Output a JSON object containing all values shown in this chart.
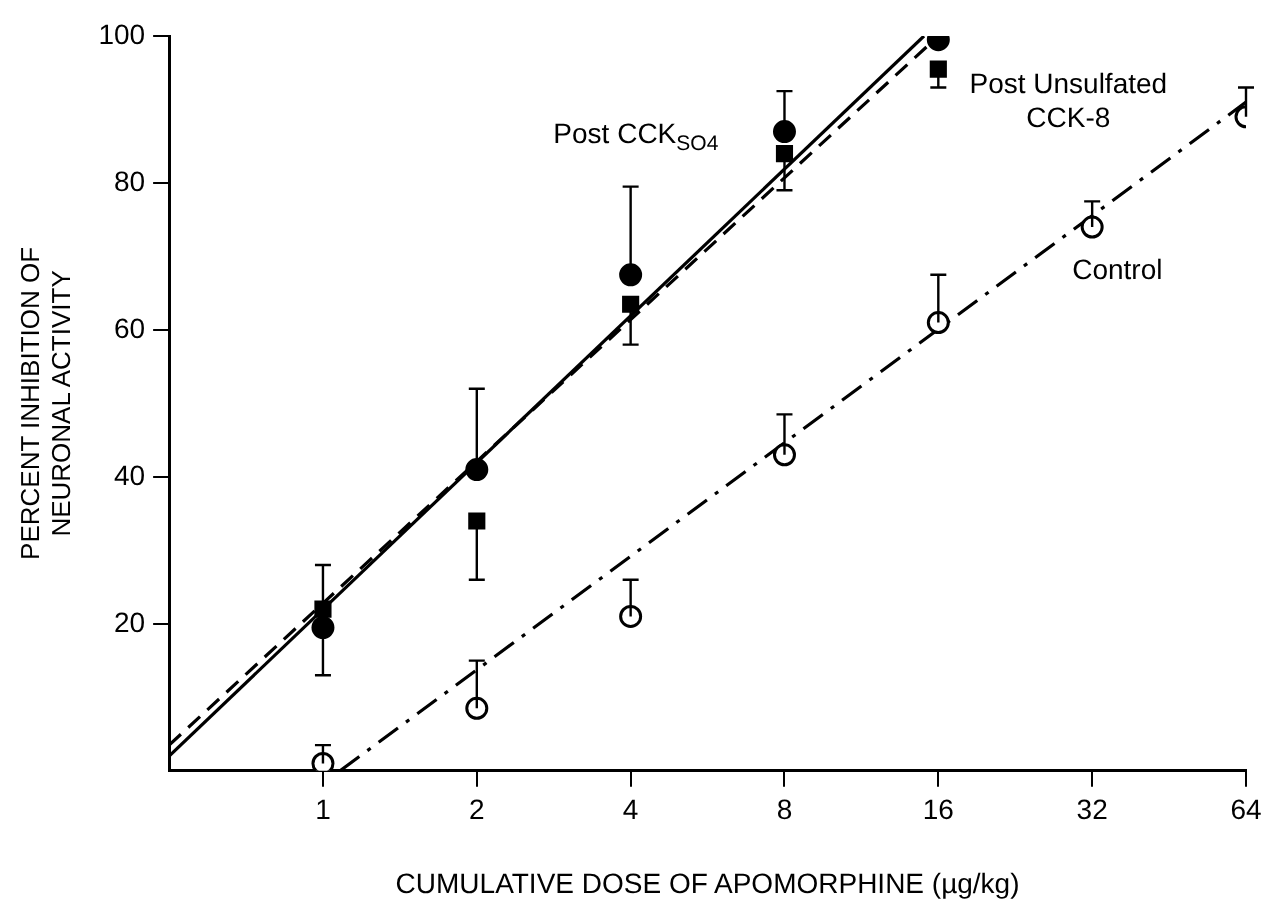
{
  "chart_data": {
    "type": "scatter",
    "xlabel": "CUMULATIVE DOSE OF APOMORPHINE (µg/kg)",
    "ylabel": "PERCENT INHIBITION OF\nNEURONAL ACTIVITY",
    "log": "x",
    "xlim": [
      0.5,
      64
    ],
    "xticks": [
      1,
      2,
      4,
      8,
      16,
      32,
      64
    ],
    "ylim": [
      0,
      100
    ],
    "yticks": [
      20,
      40,
      60,
      80,
      100
    ],
    "grid": false,
    "legend": false,
    "series": [
      {
        "name": "Post CCK$_{SO4}$",
        "type": "scatter",
        "marker": "circle",
        "color": "#000000",
        "x": [
          1,
          2,
          4,
          8,
          16
        ],
        "values": [
          19.5,
          41,
          67.5,
          87,
          99.5
        ],
        "errors": [
          [
            19.5,
            28
          ],
          [
            41,
            52
          ],
          [
            67.5,
            79.5
          ],
          [
            87,
            92.5
          ],
          null
        ]
      },
      {
        "name": "Post Unsulfated CCK-8",
        "type": "scatter",
        "marker": "square",
        "color": "#000000",
        "x": [
          1,
          2,
          4,
          8,
          16
        ],
        "values": [
          22,
          34,
          63.5,
          84,
          95.5
        ],
        "errors": [
          [
            13,
            22
          ],
          [
            26,
            34
          ],
          [
            58,
            63.5
          ],
          [
            79,
            84
          ],
          [
            93,
            95.5
          ]
        ]
      },
      {
        "name": "Control",
        "type": "scatter",
        "marker": "circle",
        "color": "#ffffff",
        "x": [
          1,
          2,
          4,
          8,
          16,
          32,
          64
        ],
        "values": [
          1,
          8.5,
          21,
          43,
          61,
          74,
          89
        ],
        "errors": [
          [
            1,
            3.5
          ],
          [
            8.5,
            15
          ],
          [
            21,
            26
          ],
          [
            43,
            48.5
          ],
          [
            61,
            67.5
          ],
          [
            74,
            77.5
          ],
          [
            89,
            93
          ]
        ]
      },
      {
        "type": "line",
        "marker": "none",
        "line_style": "solid",
        "color": "#000000",
        "x": [
          0.5,
          15
        ],
        "values": [
          2,
          100
        ]
      },
      {
        "type": "line",
        "marker": "none",
        "line_style": "dashed",
        "color": "#000000",
        "x": [
          0.5,
          16
        ],
        "values": [
          3.5,
          100
        ]
      },
      {
        "type": "line",
        "marker": "none",
        "line_style": "dashdot",
        "color": "#000000",
        "x": [
          1.08,
          64
        ],
        "values": [
          0,
          91
        ]
      }
    ]
  }
}
